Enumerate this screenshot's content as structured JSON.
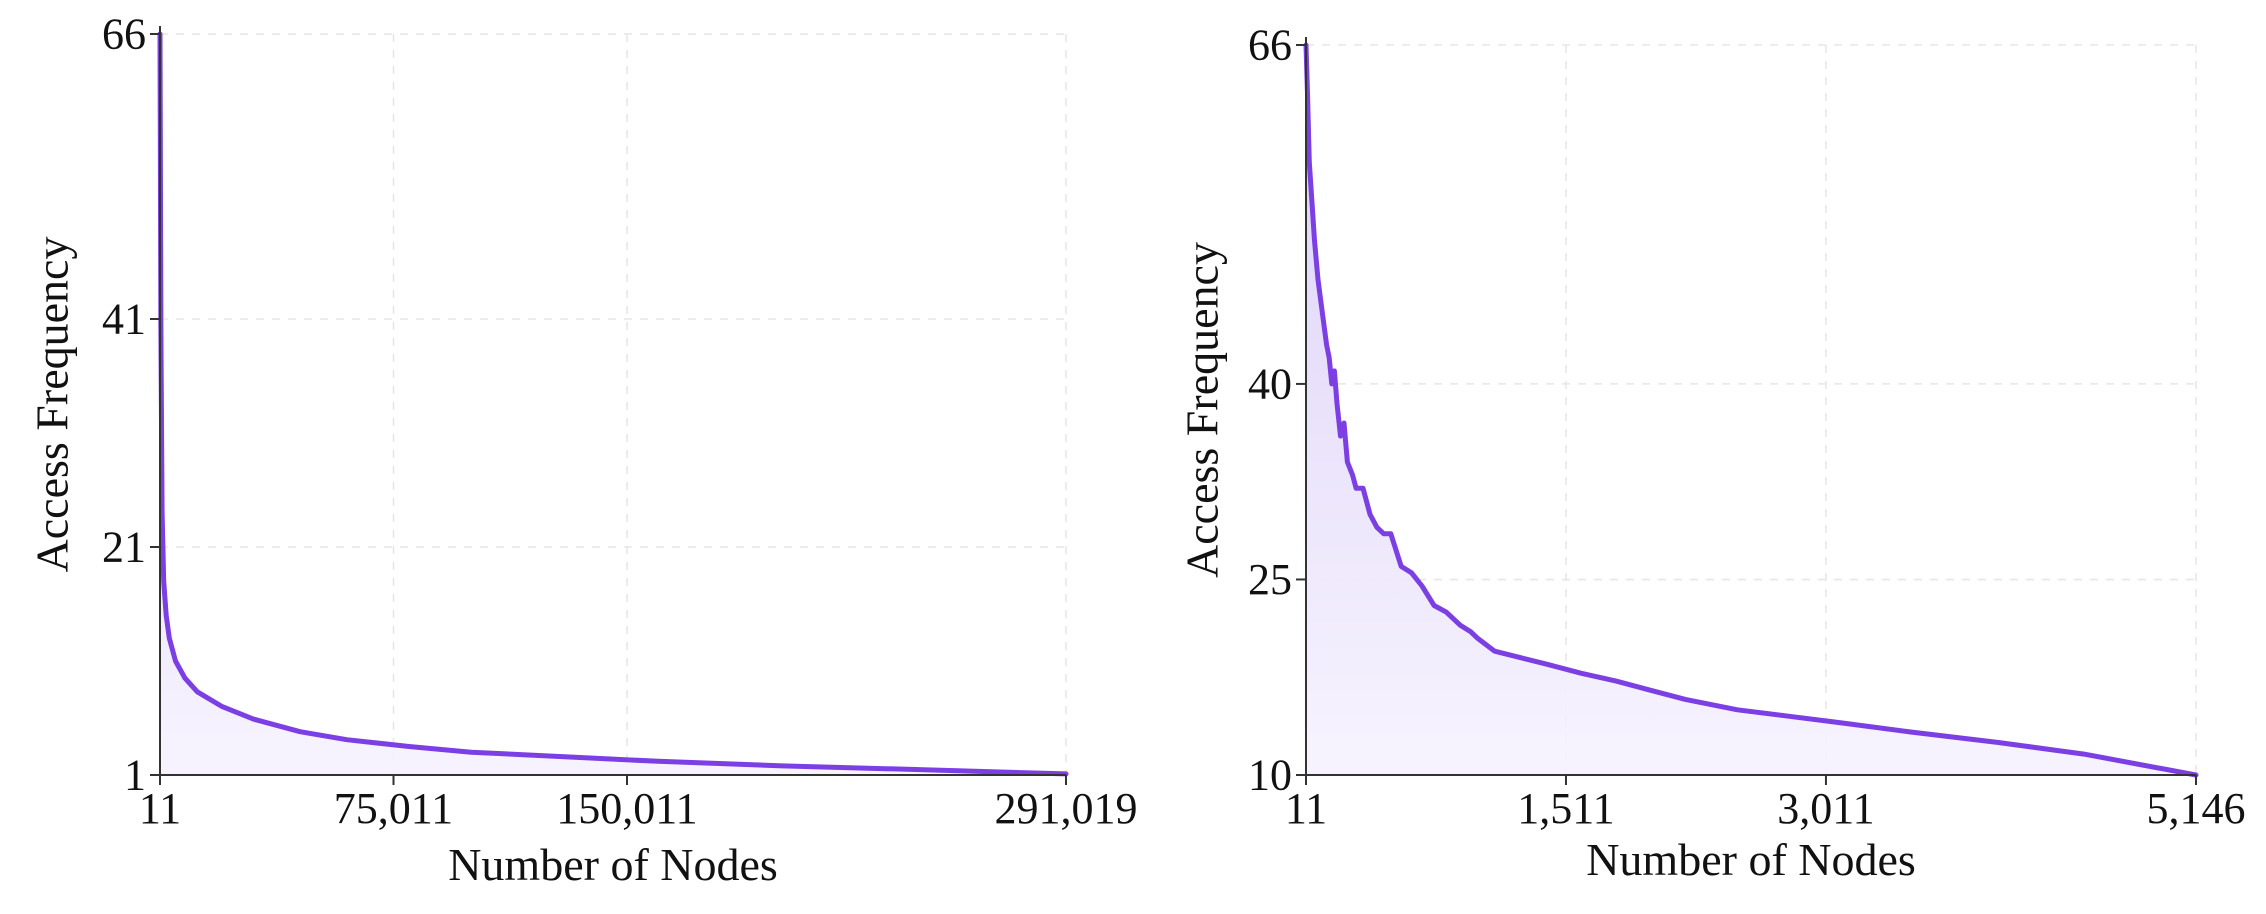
{
  "colors": {
    "line": "#7B3FE4",
    "fill_top": "#D9CCF7",
    "fill_bottom": "#F6F2FE"
  },
  "chart_data": [
    {
      "type": "area",
      "title": "",
      "xlabel": "Number of Nodes",
      "ylabel": "Access Frequency",
      "xlim": [
        11,
        291019
      ],
      "ylim": [
        1,
        66
      ],
      "x_ticks": [
        11,
        75011,
        150011,
        291019
      ],
      "x_tick_labels": [
        "11",
        "75,011",
        "150,011",
        "291,019"
      ],
      "y_ticks": [
        1,
        21,
        41,
        66
      ],
      "y_tick_labels": [
        "1",
        "21",
        "41",
        "66"
      ],
      "grid": true,
      "series": [
        {
          "name": "Access Frequency",
          "x": [
            11,
            300,
            700,
            1200,
            2000,
            3000,
            5000,
            8000,
            12000,
            20000,
            30000,
            45000,
            60000,
            80000,
            100000,
            130000,
            160000,
            200000,
            240000,
            291019
          ],
          "y": [
            66,
            40,
            24,
            18,
            15,
            13,
            11,
            9.5,
            8.3,
            7,
            5.9,
            4.8,
            4.1,
            3.5,
            3.0,
            2.6,
            2.2,
            1.8,
            1.5,
            1.1
          ]
        }
      ]
    },
    {
      "type": "area",
      "title": "",
      "xlabel": "Number of Nodes",
      "ylabel": "Access Frequency",
      "xlim": [
        11,
        5146
      ],
      "ylim": [
        10,
        66
      ],
      "x_ticks": [
        11,
        1511,
        3011,
        5146
      ],
      "x_tick_labels": [
        "11",
        "1,511",
        "3,011",
        "5,146"
      ],
      "y_ticks": [
        10,
        25,
        40,
        66
      ],
      "y_tick_labels": [
        "10",
        "25",
        "40",
        "66"
      ],
      "grid": true,
      "series": [
        {
          "name": "Access Frequency",
          "x": [
            11,
            20,
            30,
            45,
            60,
            80,
            100,
            115,
            130,
            145,
            160,
            175,
            190,
            210,
            230,
            250,
            280,
            300,
            340,
            380,
            420,
            460,
            500,
            560,
            620,
            680,
            750,
            820,
            900,
            960,
            1000,
            1100,
            1250,
            1400,
            1600,
            1800,
            2000,
            2200,
            2500,
            2800,
            3100,
            3500,
            4000,
            4500,
            5146
          ],
          "y": [
            66,
            62,
            57,
            54,
            51,
            48,
            46,
            44.5,
            43,
            42,
            40,
            41,
            38.5,
            36,
            37,
            34,
            33,
            32,
            32,
            30,
            29,
            28.5,
            28.5,
            26,
            25.5,
            24.5,
            23,
            22.5,
            21.5,
            21,
            20.5,
            19.5,
            19,
            18.5,
            17.8,
            17.2,
            16.5,
            15.8,
            15,
            14.5,
            14,
            13.3,
            12.5,
            11.6,
            10
          ]
        }
      ]
    }
  ]
}
